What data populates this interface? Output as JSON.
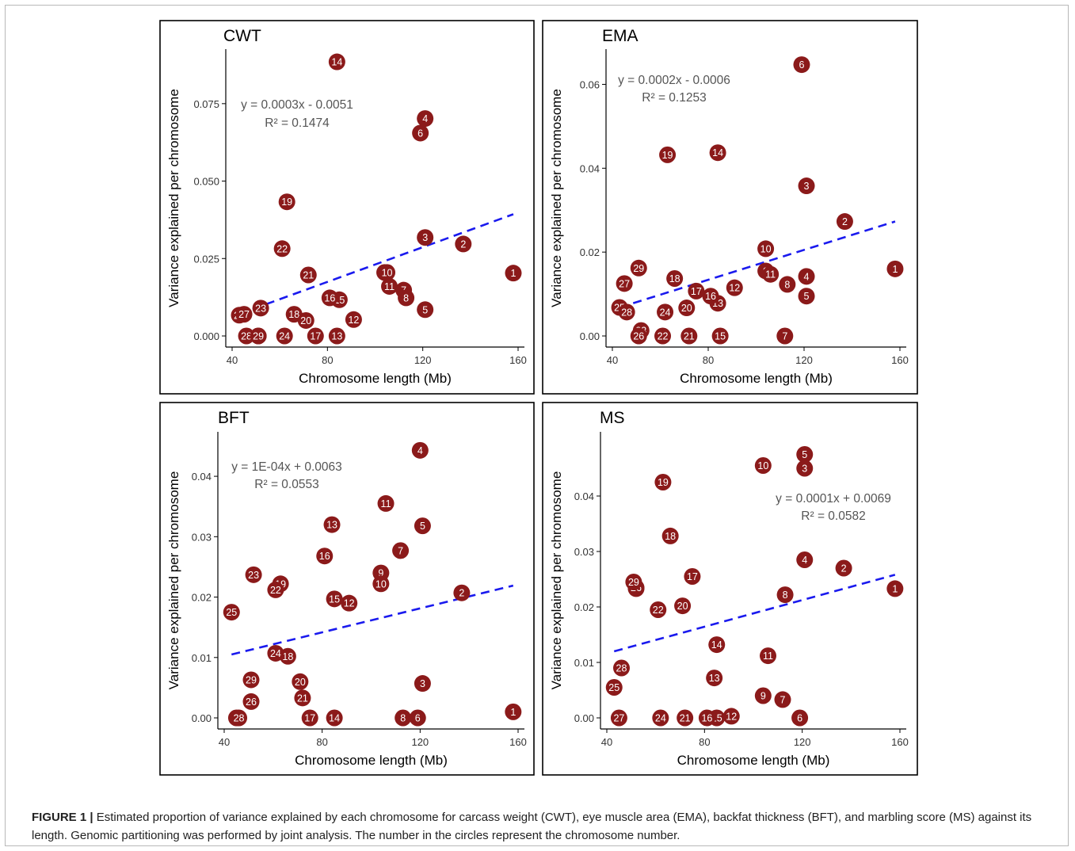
{
  "caption": {
    "label": "FIGURE 1 |",
    "text": " Estimated proportion of variance explained by each chromosome for carcass weight (CWT), eye muscle area (EMA), backfat thickness (BFT), and marbling score (MS) against its length. Genomic partitioning was performed by joint analysis. The number in the circles represent the chromosome number."
  },
  "colors": {
    "point": "#8b1a1a",
    "trend": "#1a1aee",
    "axis": "#000000",
    "equation": "#555555"
  },
  "chart_data": [
    {
      "type": "scatter",
      "title": "CWT",
      "xlabel": "Chromosome length (Mb)",
      "ylabel": "Variance explained per chromosome",
      "xlim": [
        40,
        160
      ],
      "ylim": [
        0,
        0.088
      ],
      "xticks": [
        40,
        80,
        120,
        160
      ],
      "yticks": [
        0,
        0.025,
        0.05,
        0.075
      ],
      "ytick_labels": [
        "0.000",
        "0.025",
        "0.050",
        "0.075"
      ],
      "equation": "y = 0.0003x - 0.0051",
      "r2": "R² = 0.1474",
      "trend": {
        "x": [
          43,
          158
        ],
        "y": [
          0.0071,
          0.0393
        ]
      },
      "points": [
        {
          "label": "1",
          "x": 158,
          "y": 0.0203
        },
        {
          "label": "2",
          "x": 137,
          "y": 0.0297
        },
        {
          "label": "3",
          "x": 121,
          "y": 0.0318
        },
        {
          "label": "4",
          "x": 121,
          "y": 0.0702
        },
        {
          "label": "5",
          "x": 121,
          "y": 0.0085
        },
        {
          "label": "6",
          "x": 119,
          "y": 0.0655
        },
        {
          "label": "7",
          "x": 112,
          "y": 0.0148
        },
        {
          "label": "8",
          "x": 113,
          "y": 0.0123
        },
        {
          "label": "9",
          "x": 104,
          "y": 0.0205
        },
        {
          "label": "10",
          "x": 105,
          "y": 0.0205
        },
        {
          "label": "11",
          "x": 106,
          "y": 0.016
        },
        {
          "label": "12",
          "x": 91,
          "y": 0.0053
        },
        {
          "label": "13",
          "x": 84,
          "y": 0.0
        },
        {
          "label": "14",
          "x": 84,
          "y": 0.0885
        },
        {
          "label": "15",
          "x": 85,
          "y": 0.0117
        },
        {
          "label": "16",
          "x": 81,
          "y": 0.0123
        },
        {
          "label": "17",
          "x": 75,
          "y": 0.0
        },
        {
          "label": "18",
          "x": 66,
          "y": 0.007
        },
        {
          "label": "19",
          "x": 63,
          "y": 0.0433
        },
        {
          "label": "20",
          "x": 71,
          "y": 0.005
        },
        {
          "label": "21",
          "x": 72,
          "y": 0.0197
        },
        {
          "label": "22",
          "x": 61,
          "y": 0.0282
        },
        {
          "label": "23",
          "x": 52,
          "y": 0.009
        },
        {
          "label": "24",
          "x": 62,
          "y": 0.0
        },
        {
          "label": "25",
          "x": 43,
          "y": 0.0067
        },
        {
          "label": "26",
          "x": 51,
          "y": 0.0
        },
        {
          "label": "27",
          "x": 45,
          "y": 0.007
        },
        {
          "label": "28",
          "x": 46,
          "y": 0.0
        },
        {
          "label": "29",
          "x": 51,
          "y": 0.0
        }
      ]
    },
    {
      "type": "scatter",
      "title": "EMA",
      "xlabel": "Chromosome length (Mb)",
      "ylabel": "Variance explained per chromosome",
      "xlim": [
        40,
        160
      ],
      "ylim": [
        0,
        0.065
      ],
      "xticks": [
        40,
        80,
        120,
        160
      ],
      "yticks": [
        0,
        0.02,
        0.04,
        0.06
      ],
      "ytick_labels": [
        "0.00",
        "0.02",
        "0.04",
        "0.06"
      ],
      "equation": "y = 0.0002x - 0.0006",
      "r2": "R² = 0.1253",
      "trend": {
        "x": [
          43,
          158
        ],
        "y": [
          0.0068,
          0.0273
        ]
      },
      "points": [
        {
          "label": "1",
          "x": 158,
          "y": 0.016
        },
        {
          "label": "2",
          "x": 137,
          "y": 0.0273
        },
        {
          "label": "3",
          "x": 121,
          "y": 0.0358
        },
        {
          "label": "4",
          "x": 121,
          "y": 0.0142
        },
        {
          "label": "5",
          "x": 121,
          "y": 0.0095
        },
        {
          "label": "6",
          "x": 119,
          "y": 0.0647
        },
        {
          "label": "7",
          "x": 112,
          "y": 0.0
        },
        {
          "label": "8",
          "x": 113,
          "y": 0.0123
        },
        {
          "label": "9",
          "x": 104,
          "y": 0.0155
        },
        {
          "label": "10",
          "x": 104,
          "y": 0.0208
        },
        {
          "label": "11",
          "x": 106,
          "y": 0.0147
        },
        {
          "label": "12",
          "x": 91,
          "y": 0.0115
        },
        {
          "label": "13",
          "x": 84,
          "y": 0.0078
        },
        {
          "label": "14",
          "x": 84,
          "y": 0.0437
        },
        {
          "label": "15",
          "x": 85,
          "y": 0.0
        },
        {
          "label": "16",
          "x": 81,
          "y": 0.0095
        },
        {
          "label": "17",
          "x": 75,
          "y": 0.0107
        },
        {
          "label": "18",
          "x": 66,
          "y": 0.0137
        },
        {
          "label": "19",
          "x": 63,
          "y": 0.0432
        },
        {
          "label": "20",
          "x": 71,
          "y": 0.0067
        },
        {
          "label": "21",
          "x": 72,
          "y": 0.0
        },
        {
          "label": "22",
          "x": 61,
          "y": 0.0
        },
        {
          "label": "23",
          "x": 52,
          "y": 0.0013
        },
        {
          "label": "24",
          "x": 62,
          "y": 0.0057
        },
        {
          "label": "25",
          "x": 43,
          "y": 0.0068
        },
        {
          "label": "26",
          "x": 51,
          "y": 0.0
        },
        {
          "label": "27",
          "x": 45,
          "y": 0.0125
        },
        {
          "label": "28",
          "x": 46,
          "y": 0.0057
        },
        {
          "label": "29",
          "x": 51,
          "y": 0.0162
        }
      ]
    },
    {
      "type": "scatter",
      "title": "BFT",
      "xlabel": "Chromosome length (Mb)",
      "ylabel": "Variance explained per chromosome",
      "xlim": [
        40,
        160
      ],
      "ylim": [
        0,
        0.045
      ],
      "xticks": [
        40,
        80,
        120,
        160
      ],
      "yticks": [
        0,
        0.01,
        0.02,
        0.03,
        0.04
      ],
      "ytick_labels": [
        "0.00",
        "0.01",
        "0.02",
        "0.03",
        "0.04"
      ],
      "equation": "y = 1E-04x + 0.0063",
      "r2": "R² = 0.0553",
      "trend": {
        "x": [
          43,
          158
        ],
        "y": [
          0.0105,
          0.0219
        ]
      },
      "points": [
        {
          "label": "1",
          "x": 158,
          "y": 0.001
        },
        {
          "label": "2",
          "x": 137,
          "y": 0.0207
        },
        {
          "label": "3",
          "x": 121,
          "y": 0.0057
        },
        {
          "label": "4",
          "x": 120,
          "y": 0.0443
        },
        {
          "label": "5",
          "x": 121,
          "y": 0.0318
        },
        {
          "label": "6",
          "x": 119,
          "y": 0.0
        },
        {
          "label": "7",
          "x": 112,
          "y": 0.0277
        },
        {
          "label": "8",
          "x": 113,
          "y": 0.0
        },
        {
          "label": "9",
          "x": 104,
          "y": 0.024
        },
        {
          "label": "10",
          "x": 104,
          "y": 0.0222
        },
        {
          "label": "11",
          "x": 106,
          "y": 0.0355
        },
        {
          "label": "12",
          "x": 91,
          "y": 0.019
        },
        {
          "label": "13",
          "x": 84,
          "y": 0.032
        },
        {
          "label": "14",
          "x": 85,
          "y": 0.0
        },
        {
          "label": "15",
          "x": 85,
          "y": 0.0197
        },
        {
          "label": "16",
          "x": 81,
          "y": 0.0268
        },
        {
          "label": "17",
          "x": 75,
          "y": 0.0
        },
        {
          "label": "18",
          "x": 66,
          "y": 0.0102
        },
        {
          "label": "19",
          "x": 63,
          "y": 0.0222
        },
        {
          "label": "20",
          "x": 71,
          "y": 0.006
        },
        {
          "label": "21",
          "x": 72,
          "y": 0.0033
        },
        {
          "label": "22",
          "x": 61,
          "y": 0.0212
        },
        {
          "label": "23",
          "x": 52,
          "y": 0.0237
        },
        {
          "label": "24",
          "x": 61,
          "y": 0.0107
        },
        {
          "label": "25",
          "x": 43,
          "y": 0.0175
        },
        {
          "label": "26",
          "x": 51,
          "y": 0.0027
        },
        {
          "label": "27",
          "x": 45,
          "y": 0.0
        },
        {
          "label": "28",
          "x": 46,
          "y": 0.0
        },
        {
          "label": "29",
          "x": 51,
          "y": 0.0063
        }
      ]
    },
    {
      "type": "scatter",
      "title": "MS",
      "xlabel": "Chromosome length (Mb)",
      "ylabel": "Variance explained per chromosome",
      "xlim": [
        40,
        160
      ],
      "ylim": [
        0,
        0.049
      ],
      "xticks": [
        40,
        80,
        120,
        160
      ],
      "yticks": [
        0,
        0.01,
        0.02,
        0.03,
        0.04
      ],
      "ytick_labels": [
        "0.00",
        "0.01",
        "0.02",
        "0.03",
        "0.04"
      ],
      "equation": "y = 0.0001x + 0.0069",
      "r2": "R² = 0.0582",
      "trend": {
        "x": [
          43,
          158
        ],
        "y": [
          0.012,
          0.0258
        ]
      },
      "points": [
        {
          "label": "1",
          "x": 158,
          "y": 0.0233
        },
        {
          "label": "2",
          "x": 137,
          "y": 0.027
        },
        {
          "label": "3",
          "x": 121,
          "y": 0.045
        },
        {
          "label": "4",
          "x": 121,
          "y": 0.0285
        },
        {
          "label": "5",
          "x": 121,
          "y": 0.0475
        },
        {
          "label": "6",
          "x": 119,
          "y": 0.0
        },
        {
          "label": "7",
          "x": 112,
          "y": 0.0033
        },
        {
          "label": "8",
          "x": 113,
          "y": 0.0222
        },
        {
          "label": "9",
          "x": 104,
          "y": 0.004
        },
        {
          "label": "10",
          "x": 104,
          "y": 0.0455
        },
        {
          "label": "11",
          "x": 106,
          "y": 0.0112
        },
        {
          "label": "12",
          "x": 91,
          "y": 0.0003
        },
        {
          "label": "13",
          "x": 84,
          "y": 0.0072
        },
        {
          "label": "14",
          "x": 85,
          "y": 0.0132
        },
        {
          "label": "15",
          "x": 85,
          "y": 0.0
        },
        {
          "label": "16",
          "x": 81,
          "y": 0.0
        },
        {
          "label": "17",
          "x": 75,
          "y": 0.0255
        },
        {
          "label": "18",
          "x": 66,
          "y": 0.0328
        },
        {
          "label": "19",
          "x": 63,
          "y": 0.0425
        },
        {
          "label": "20",
          "x": 71,
          "y": 0.0202
        },
        {
          "label": "21",
          "x": 72,
          "y": 0.0
        },
        {
          "label": "22",
          "x": 61,
          "y": 0.0195
        },
        {
          "label": "23",
          "x": 52,
          "y": 0.0233
        },
        {
          "label": "24",
          "x": 62,
          "y": 0.0
        },
        {
          "label": "25",
          "x": 43,
          "y": 0.0055
        },
        {
          "label": "26",
          "x": 52,
          "y": 0.0235
        },
        {
          "label": "27",
          "x": 45,
          "y": 0.0
        },
        {
          "label": "28",
          "x": 46,
          "y": 0.009
        },
        {
          "label": "29",
          "x": 51,
          "y": 0.0245
        }
      ]
    }
  ]
}
